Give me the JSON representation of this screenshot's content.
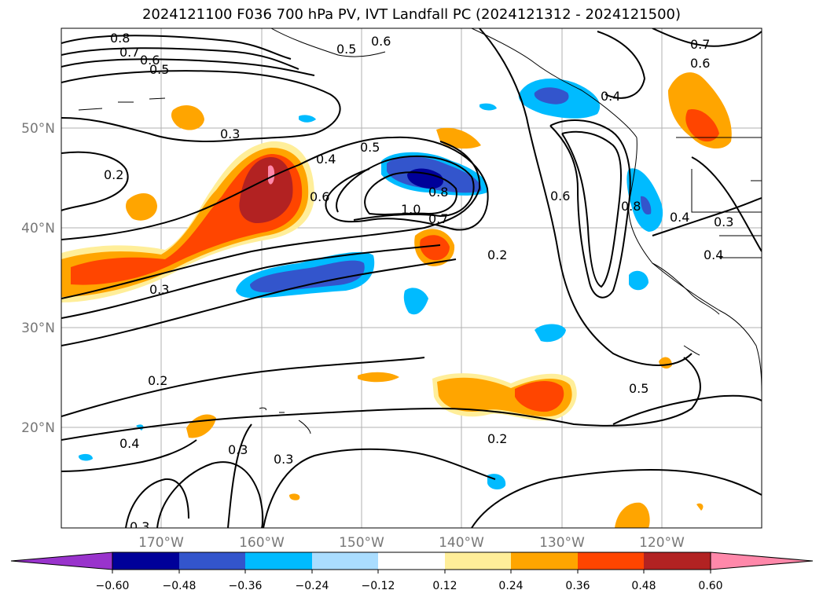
{
  "title": "2024121100 F036 700 hPa PV, IVT Landfall PC (2024121312 - 2024121500)",
  "lat_labels": [
    "50°N",
    "40°N",
    "30°N",
    "20°N"
  ],
  "lon_labels": [
    "170°W",
    "160°W",
    "150°W",
    "140°W",
    "130°W",
    "120°W"
  ],
  "colorbar": {
    "ticks": [
      "−0.60",
      "−0.48",
      "−0.36",
      "−0.24",
      "−0.12",
      "0.12",
      "0.24",
      "0.36",
      "0.48",
      "0.60"
    ],
    "colors": [
      "#9933cc",
      "#000099",
      "#3355cc",
      "#00bbff",
      "#aaddff",
      "#ffffff",
      "#ffee99",
      "#ffa500",
      "#ff4500",
      "#b22222",
      "#ff88aa"
    ]
  },
  "contour_labels": [
    "0.8",
    "0.7",
    "0.6",
    "0.5",
    "0.6",
    "0.5",
    "0.7",
    "0.6",
    "0.4",
    "0.3",
    "0.2",
    "0.4",
    "0.5",
    "0.6",
    "1.0",
    "0.8",
    "0.7",
    "0.6",
    "0.2",
    "0.8",
    "0.4",
    "0.3",
    "0.4",
    "0.3",
    "0.2",
    "0.4",
    "0.3",
    "0.3",
    "0.2",
    "0.5",
    "0.3"
  ],
  "colors": {
    "blue_light": "#00bbff",
    "blue_mid": "#3355cc",
    "blue_dark": "#000099",
    "yellow": "#ffee99",
    "orange": "#ffa500",
    "red": "#ff4500",
    "brown": "#b22222",
    "pink": "#ff88aa"
  }
}
